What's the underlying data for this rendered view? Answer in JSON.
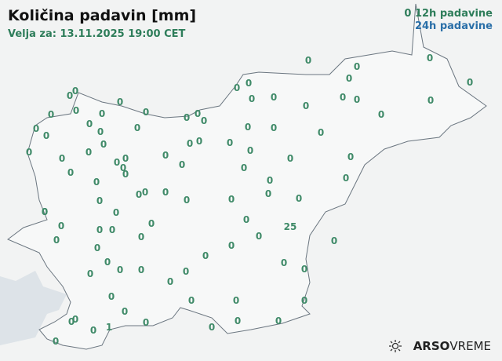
{
  "header": {
    "title": "Količina padavin [mm]",
    "valid": "Velja za: 13.11.2025 19:00 CET"
  },
  "legend": {
    "marker": "0",
    "label_12h": "12h padavine",
    "label_24h": "24h padavine",
    "color_12h": "#2e7d5a",
    "color_24h": "#2a6fa8"
  },
  "stations": [
    "0",
    "0",
    "0",
    "0",
    "0",
    "0",
    "0",
    "0",
    "0",
    "0",
    "0",
    "0",
    "0",
    "0",
    "0",
    "0",
    "0",
    "0",
    "0",
    "0",
    "0",
    "0",
    "0",
    "0",
    "0",
    "0",
    "0",
    "0",
    "0",
    "0",
    "0",
    "0",
    "0",
    "0",
    "0",
    "0",
    "0",
    "0",
    "0",
    "0",
    "0",
    "0",
    "0",
    "0",
    "0",
    "0",
    "0",
    "0",
    "0",
    "0",
    "0",
    "0",
    "0",
    "0",
    "0",
    "0",
    "0",
    "0",
    "0",
    "0",
    "0",
    "0",
    "0",
    "0",
    "0",
    "0",
    "0",
    "0",
    "0",
    "0",
    "0",
    "25",
    "0",
    "0",
    "0",
    "0",
    "0",
    "0",
    "0",
    "0",
    "0",
    "0",
    "0",
    "0",
    "0",
    "0",
    "0",
    "0",
    "0",
    "0",
    "0",
    "0",
    "0",
    "1",
    "0",
    "0",
    "0",
    "0",
    "0"
  ],
  "logo": {
    "brand": "ARSO",
    "product": "VREME",
    "icon": "sun-icon"
  }
}
